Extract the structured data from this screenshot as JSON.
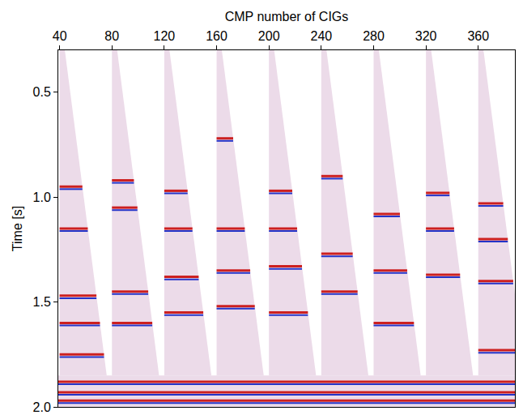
{
  "chart_data": {
    "type": "seismic_gathers",
    "xlabel": "CMP number of CIGs",
    "ylabel": "Time [s]",
    "xlim": [
      39,
      388
    ],
    "ylim": [
      2.0,
      0.3
    ],
    "xticks": [
      40,
      80,
      120,
      160,
      200,
      240,
      280,
      320,
      360
    ],
    "yticks": [
      0.5,
      {
        "value": 1.0,
        "label": "1.0"
      },
      1.5,
      {
        "value": 2.0,
        "label": "2.0"
      }
    ],
    "grid": false,
    "color": "#cc2020",
    "wedge": {
      "time": [
        0.3,
        1.85
      ],
      "width": [
        4,
        36
      ]
    },
    "gathers": [
      {
        "cmp": 40,
        "events": [
          0.95,
          1.15,
          1.47,
          1.6,
          1.75
        ]
      },
      {
        "cmp": 80,
        "events": [
          0.92,
          1.05,
          1.45,
          1.6
        ]
      },
      {
        "cmp": 120,
        "events": [
          0.97,
          1.15,
          1.38,
          1.55
        ]
      },
      {
        "cmp": 160,
        "events": [
          0.72,
          1.15,
          1.35,
          1.52
        ]
      },
      {
        "cmp": 200,
        "events": [
          0.97,
          1.15,
          1.33,
          1.55
        ]
      },
      {
        "cmp": 240,
        "events": [
          0.9,
          1.27,
          1.45
        ]
      },
      {
        "cmp": 280,
        "events": [
          1.08,
          1.35,
          1.6
        ]
      },
      {
        "cmp": 320,
        "events": [
          0.98,
          1.15,
          1.37
        ]
      },
      {
        "cmp": 360,
        "events": [
          1.03,
          1.2,
          1.4,
          1.73
        ]
      }
    ],
    "full_fill": {
      "time": 1.85,
      "events": [
        1.88,
        1.93,
        1.97
      ]
    }
  }
}
